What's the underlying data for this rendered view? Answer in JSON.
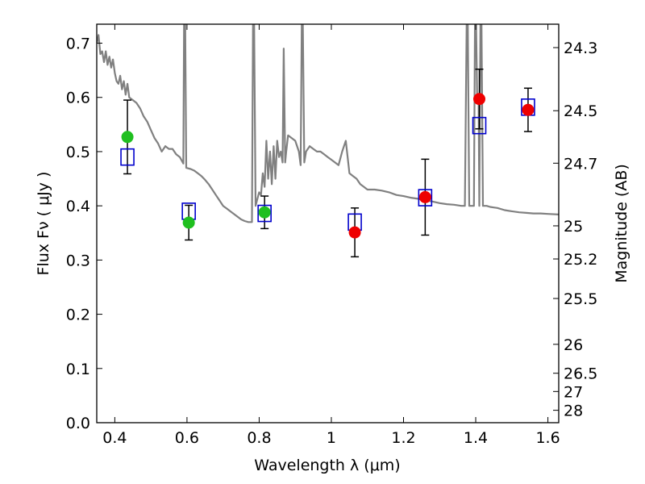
{
  "chart_data": {
    "type": "scatter",
    "title": "",
    "xlabel": "Wavelength  λ (μm)",
    "ylabel": "Flux  Fν  ( μJy )",
    "y2label": "Magnitude (AB)",
    "xlim": [
      0.35,
      1.63
    ],
    "ylim": [
      0.0,
      0.735
    ],
    "grid": false,
    "x_ticks": [
      0.4,
      0.6,
      0.8,
      1.0,
      1.2,
      1.4,
      1.6
    ],
    "x_tick_labels": [
      "0.4",
      "0.6",
      "0.8",
      "1",
      "1.2",
      "1.4",
      "1.6"
    ],
    "y_ticks": [
      0.0,
      0.1,
      0.2,
      0.3,
      0.4,
      0.5,
      0.6,
      0.7
    ],
    "y_tick_labels": [
      "0.0",
      "0.1",
      "0.2",
      "0.3",
      "0.4",
      "0.5",
      "0.6",
      "0.7"
    ],
    "y2_ticks": [
      {
        "mag": 24.3,
        "label": "24.3"
      },
      {
        "mag": 24.5,
        "label": "24.5"
      },
      {
        "mag": 24.7,
        "label": "24.7"
      },
      {
        "mag": 25.0,
        "label": "25"
      },
      {
        "mag": 25.2,
        "label": "25.2"
      },
      {
        "mag": 25.5,
        "label": "25.5"
      },
      {
        "mag": 26.0,
        "label": "26"
      },
      {
        "mag": 26.5,
        "label": "26.5"
      },
      {
        "mag": 27.0,
        "label": "27"
      },
      {
        "mag": 28.0,
        "label": "28"
      }
    ],
    "series": [
      {
        "role": "model_spectrum",
        "type": "line",
        "color": "#808080",
        "points": [
          [
            0.35,
            0.7
          ],
          [
            0.355,
            0.715
          ],
          [
            0.36,
            0.68
          ],
          [
            0.365,
            0.685
          ],
          [
            0.37,
            0.665
          ],
          [
            0.375,
            0.685
          ],
          [
            0.38,
            0.66
          ],
          [
            0.385,
            0.675
          ],
          [
            0.39,
            0.655
          ],
          [
            0.395,
            0.67
          ],
          [
            0.4,
            0.645
          ],
          [
            0.405,
            0.63
          ],
          [
            0.41,
            0.625
          ],
          [
            0.415,
            0.64
          ],
          [
            0.42,
            0.615
          ],
          [
            0.425,
            0.63
          ],
          [
            0.43,
            0.605
          ],
          [
            0.435,
            0.625
          ],
          [
            0.44,
            0.6
          ],
          [
            0.45,
            0.595
          ],
          [
            0.46,
            0.59
          ],
          [
            0.47,
            0.58
          ],
          [
            0.48,
            0.565
          ],
          [
            0.49,
            0.555
          ],
          [
            0.5,
            0.54
          ],
          [
            0.51,
            0.525
          ],
          [
            0.52,
            0.515
          ],
          [
            0.53,
            0.5
          ],
          [
            0.54,
            0.51
          ],
          [
            0.55,
            0.505
          ],
          [
            0.56,
            0.505
          ],
          [
            0.57,
            0.495
          ],
          [
            0.58,
            0.49
          ],
          [
            0.59,
            0.478
          ],
          [
            0.592,
            0.735
          ],
          [
            0.595,
            0.735
          ],
          [
            0.598,
            0.47
          ],
          [
            0.61,
            0.468
          ],
          [
            0.62,
            0.465
          ],
          [
            0.63,
            0.46
          ],
          [
            0.64,
            0.455
          ],
          [
            0.65,
            0.448
          ],
          [
            0.66,
            0.44
          ],
          [
            0.67,
            0.43
          ],
          [
            0.68,
            0.42
          ],
          [
            0.69,
            0.41
          ],
          [
            0.7,
            0.4
          ],
          [
            0.71,
            0.395
          ],
          [
            0.72,
            0.39
          ],
          [
            0.73,
            0.385
          ],
          [
            0.74,
            0.38
          ],
          [
            0.75,
            0.375
          ],
          [
            0.76,
            0.372
          ],
          [
            0.77,
            0.37
          ],
          [
            0.78,
            0.37
          ],
          [
            0.783,
            0.735
          ],
          [
            0.786,
            0.735
          ],
          [
            0.79,
            0.4
          ],
          [
            0.8,
            0.425
          ],
          [
            0.805,
            0.42
          ],
          [
            0.81,
            0.46
          ],
          [
            0.815,
            0.435
          ],
          [
            0.82,
            0.52
          ],
          [
            0.825,
            0.45
          ],
          [
            0.83,
            0.5
          ],
          [
            0.835,
            0.44
          ],
          [
            0.84,
            0.51
          ],
          [
            0.845,
            0.45
          ],
          [
            0.85,
            0.52
          ],
          [
            0.855,
            0.49
          ],
          [
            0.86,
            0.5
          ],
          [
            0.865,
            0.48
          ],
          [
            0.868,
            0.69
          ],
          [
            0.872,
            0.48
          ],
          [
            0.875,
            0.5
          ],
          [
            0.88,
            0.53
          ],
          [
            0.89,
            0.525
          ],
          [
            0.9,
            0.52
          ],
          [
            0.91,
            0.5
          ],
          [
            0.915,
            0.475
          ],
          [
            0.918,
            0.735
          ],
          [
            0.921,
            0.735
          ],
          [
            0.925,
            0.48
          ],
          [
            0.93,
            0.5
          ],
          [
            0.94,
            0.51
          ],
          [
            0.95,
            0.505
          ],
          [
            0.96,
            0.5
          ],
          [
            0.97,
            0.5
          ],
          [
            0.98,
            0.495
          ],
          [
            0.99,
            0.49
          ],
          [
            1.0,
            0.485
          ],
          [
            1.01,
            0.48
          ],
          [
            1.02,
            0.475
          ],
          [
            1.03,
            0.5
          ],
          [
            1.04,
            0.52
          ],
          [
            1.05,
            0.46
          ],
          [
            1.06,
            0.455
          ],
          [
            1.07,
            0.45
          ],
          [
            1.08,
            0.44
          ],
          [
            1.09,
            0.435
          ],
          [
            1.1,
            0.43
          ],
          [
            1.12,
            0.43
          ],
          [
            1.14,
            0.428
          ],
          [
            1.16,
            0.425
          ],
          [
            1.18,
            0.42
          ],
          [
            1.2,
            0.418
          ],
          [
            1.22,
            0.415
          ],
          [
            1.24,
            0.413
          ],
          [
            1.26,
            0.41
          ],
          [
            1.28,
            0.408
          ],
          [
            1.3,
            0.405
          ],
          [
            1.32,
            0.403
          ],
          [
            1.34,
            0.402
          ],
          [
            1.36,
            0.4
          ],
          [
            1.37,
            0.4
          ],
          [
            1.375,
            0.735
          ],
          [
            1.378,
            0.735
          ],
          [
            1.382,
            0.4
          ],
          [
            1.395,
            0.4
          ],
          [
            1.398,
            0.735
          ],
          [
            1.401,
            0.735
          ],
          [
            1.404,
            0.6
          ],
          [
            1.408,
            0.6
          ],
          [
            1.41,
            0.4
          ],
          [
            1.413,
            0.735
          ],
          [
            1.416,
            0.735
          ],
          [
            1.42,
            0.4
          ],
          [
            1.43,
            0.4
          ],
          [
            1.44,
            0.398
          ],
          [
            1.45,
            0.397
          ],
          [
            1.46,
            0.396
          ],
          [
            1.48,
            0.392
          ],
          [
            1.5,
            0.39
          ],
          [
            1.52,
            0.388
          ],
          [
            1.54,
            0.387
          ],
          [
            1.56,
            0.386
          ],
          [
            1.58,
            0.386
          ],
          [
            1.6,
            0.385
          ],
          [
            1.63,
            0.384
          ]
        ]
      },
      {
        "role": "model_photometry",
        "type": "scatter",
        "marker": "open-square",
        "color": "#0000cc",
        "x": [
          0.435,
          0.605,
          0.815,
          1.065,
          1.26,
          1.41,
          1.545
        ],
        "y": [
          0.49,
          0.39,
          0.386,
          0.37,
          0.415,
          0.548,
          0.582
        ]
      },
      {
        "role": "observed_optical",
        "type": "scatter",
        "marker": "filled-circle",
        "color": "#1fbf1f",
        "x": [
          0.435,
          0.605,
          0.815
        ],
        "y": [
          0.527,
          0.369,
          0.388
        ],
        "yerr": [
          0.068,
          0.032,
          0.03
        ]
      },
      {
        "role": "observed_nir",
        "type": "scatter",
        "marker": "filled-circle",
        "color": "#ee0000",
        "x": [
          1.065,
          1.26,
          1.41,
          1.545
        ],
        "y": [
          0.351,
          0.416,
          0.597,
          0.577
        ],
        "yerr": [
          0.045,
          0.07,
          0.055,
          0.04
        ]
      }
    ]
  }
}
